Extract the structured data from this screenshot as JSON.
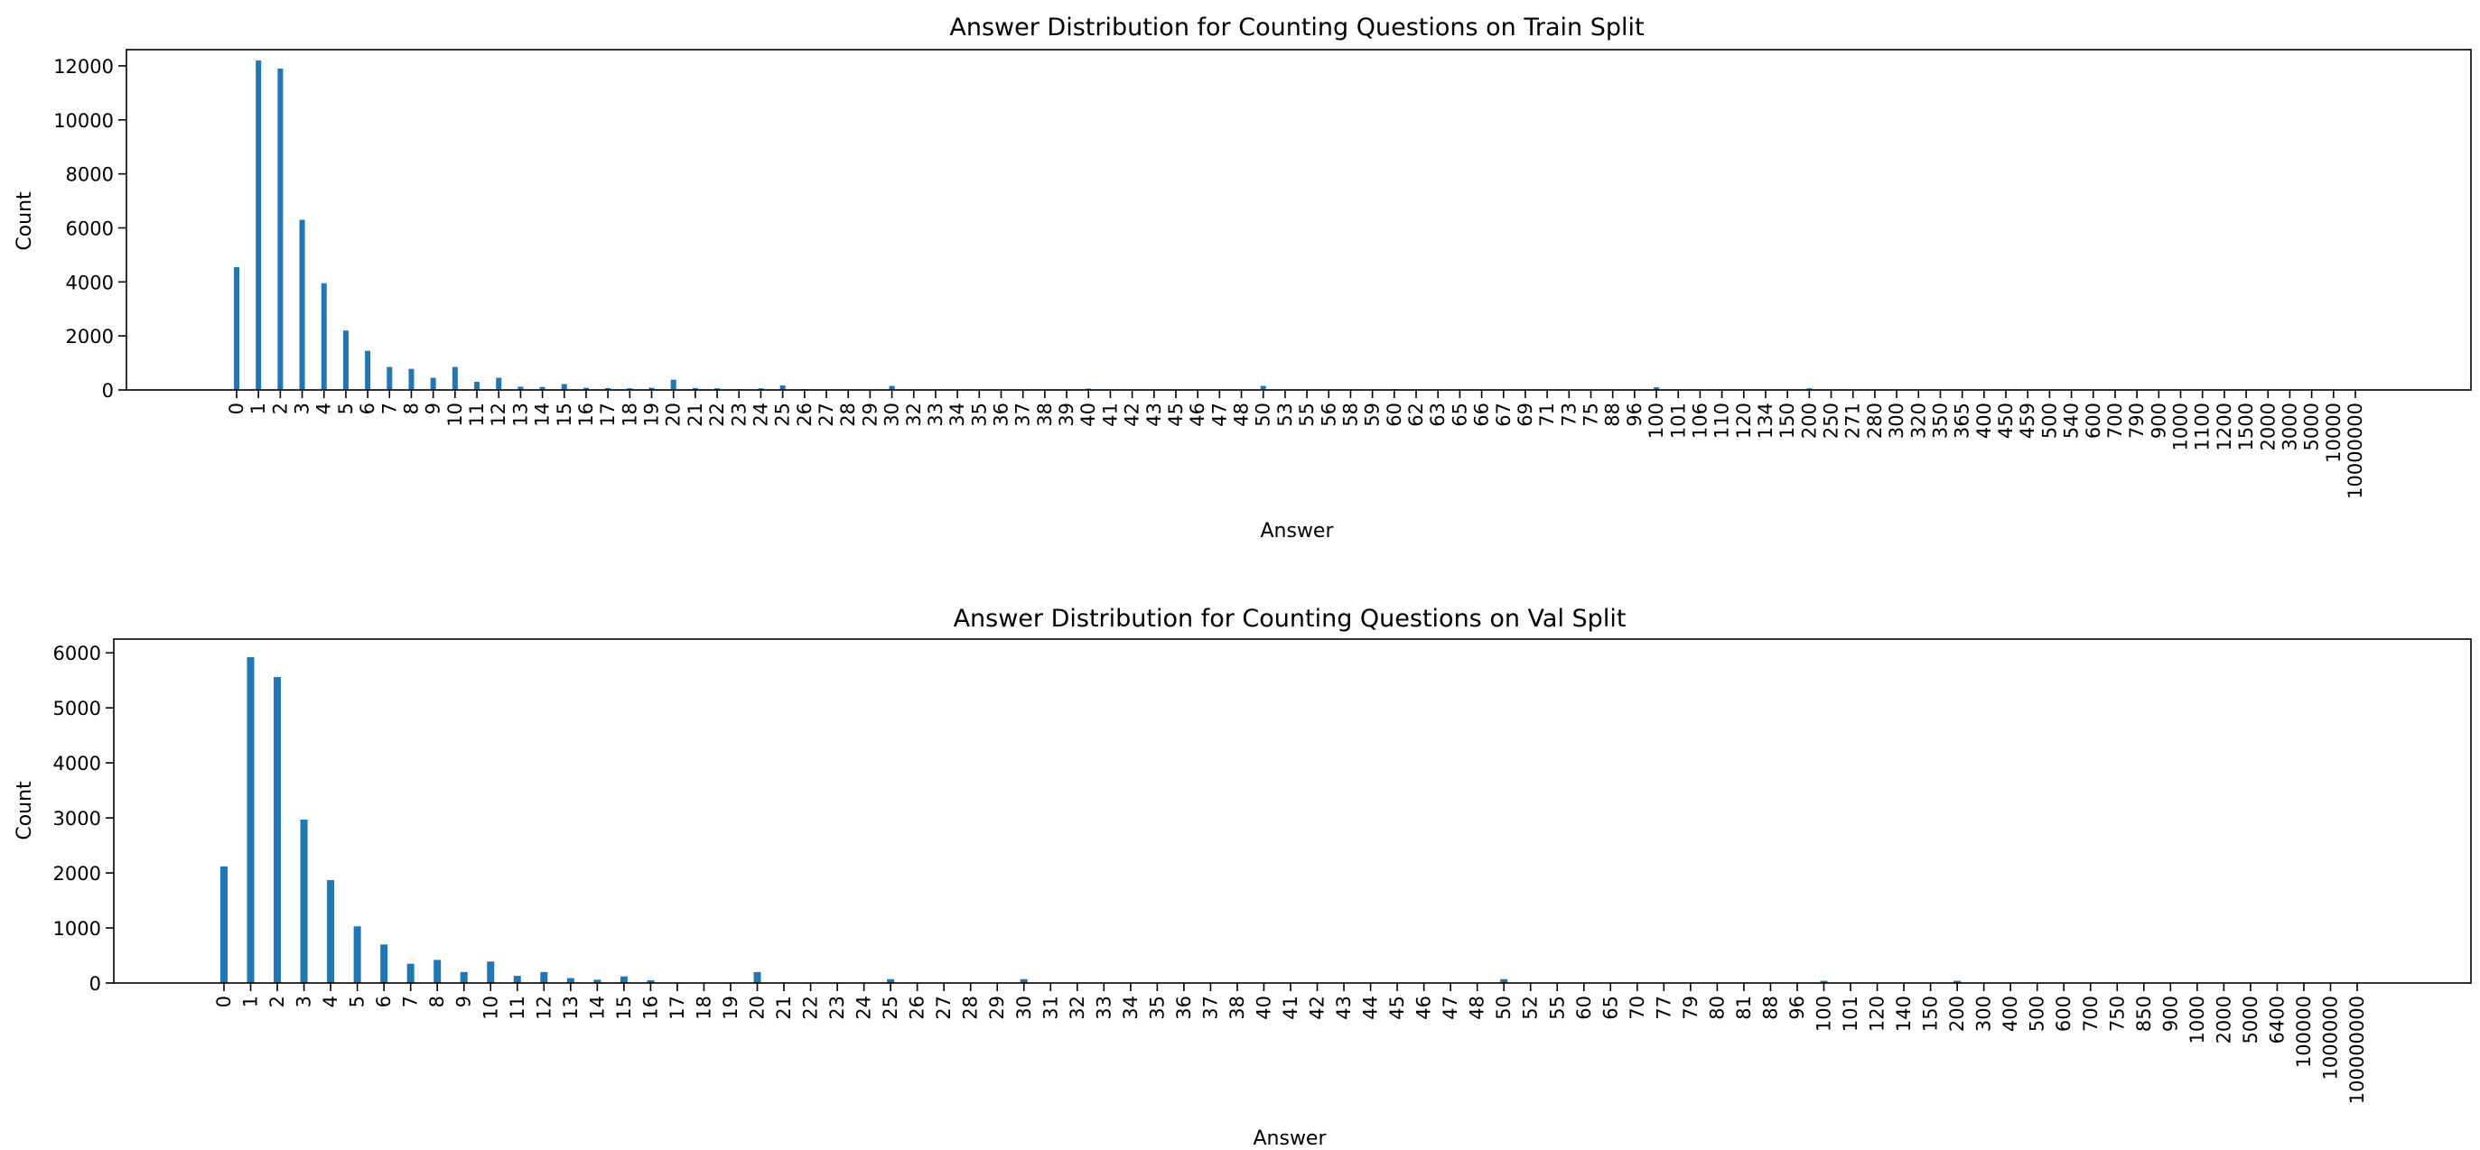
{
  "chart_data": [
    {
      "type": "bar",
      "title": "Answer Distribution for Counting Questions on Train Split",
      "xlabel": "Answer",
      "ylabel": "Count",
      "ylim": [
        0,
        12600
      ],
      "yticks": [
        0,
        2000,
        4000,
        6000,
        8000,
        10000,
        12000
      ],
      "grid": false,
      "categories": [
        "0",
        "1",
        "2",
        "3",
        "4",
        "5",
        "6",
        "7",
        "8",
        "9",
        "10",
        "11",
        "12",
        "13",
        "14",
        "15",
        "16",
        "17",
        "18",
        "19",
        "20",
        "21",
        "22",
        "23",
        "24",
        "25",
        "26",
        "27",
        "28",
        "29",
        "30",
        "32",
        "33",
        "34",
        "35",
        "36",
        "37",
        "38",
        "39",
        "40",
        "41",
        "42",
        "43",
        "45",
        "46",
        "47",
        "48",
        "50",
        "53",
        "55",
        "56",
        "58",
        "59",
        "60",
        "62",
        "63",
        "65",
        "66",
        "67",
        "69",
        "71",
        "73",
        "75",
        "88",
        "96",
        "100",
        "101",
        "106",
        "110",
        "120",
        "134",
        "150",
        "200",
        "250",
        "271",
        "280",
        "300",
        "320",
        "350",
        "365",
        "400",
        "450",
        "459",
        "500",
        "540",
        "600",
        "700",
        "790",
        "900",
        "1000",
        "1100",
        "1200",
        "1500",
        "2000",
        "3000",
        "5000",
        "10000",
        "10000000"
      ],
      "values": [
        4550,
        12200,
        11900,
        6300,
        3950,
        2200,
        1450,
        850,
        780,
        450,
        850,
        300,
        450,
        120,
        110,
        220,
        80,
        70,
        60,
        80,
        380,
        70,
        60,
        30,
        60,
        170,
        30,
        20,
        15,
        15,
        150,
        15,
        10,
        10,
        10,
        10,
        8,
        8,
        8,
        50,
        8,
        8,
        8,
        10,
        8,
        8,
        8,
        150,
        8,
        8,
        5,
        5,
        5,
        30,
        5,
        5,
        5,
        5,
        5,
        5,
        5,
        5,
        5,
        5,
        5,
        100,
        5,
        5,
        5,
        5,
        5,
        5,
        60,
        10,
        5,
        5,
        5,
        5,
        5,
        5,
        5,
        5,
        5,
        5,
        5,
        5,
        5,
        5,
        5,
        5,
        5,
        5,
        5,
        5,
        5,
        5,
        5,
        5
      ]
    },
    {
      "type": "bar",
      "title": "Answer Distribution for Counting Questions on Val Split",
      "xlabel": "Answer",
      "ylabel": "Count",
      "ylim": [
        0,
        6250
      ],
      "yticks": [
        0,
        1000,
        2000,
        3000,
        4000,
        5000,
        6000
      ],
      "grid": false,
      "categories": [
        "0",
        "1",
        "2",
        "3",
        "4",
        "5",
        "6",
        "7",
        "8",
        "9",
        "10",
        "11",
        "12",
        "13",
        "14",
        "15",
        "16",
        "17",
        "18",
        "19",
        "20",
        "21",
        "22",
        "23",
        "24",
        "25",
        "26",
        "27",
        "28",
        "29",
        "30",
        "31",
        "32",
        "33",
        "34",
        "35",
        "36",
        "37",
        "38",
        "40",
        "41",
        "42",
        "43",
        "44",
        "45",
        "46",
        "47",
        "48",
        "50",
        "52",
        "55",
        "60",
        "65",
        "70",
        "77",
        "79",
        "80",
        "81",
        "88",
        "96",
        "100",
        "101",
        "120",
        "140",
        "150",
        "200",
        "300",
        "400",
        "500",
        "600",
        "700",
        "750",
        "850",
        "900",
        "1000",
        "2000",
        "5000",
        "6400",
        "100000",
        "1000000",
        "100000000"
      ],
      "values": [
        2120,
        5920,
        5560,
        2970,
        1870,
        1030,
        700,
        350,
        420,
        200,
        390,
        130,
        200,
        90,
        60,
        120,
        50,
        10,
        10,
        10,
        200,
        10,
        10,
        10,
        10,
        70,
        10,
        5,
        5,
        5,
        70,
        5,
        5,
        5,
        5,
        5,
        5,
        5,
        5,
        5,
        5,
        5,
        5,
        5,
        5,
        5,
        5,
        5,
        70,
        5,
        5,
        5,
        5,
        5,
        5,
        5,
        5,
        5,
        5,
        5,
        40,
        5,
        5,
        5,
        5,
        40,
        5,
        5,
        5,
        5,
        5,
        5,
        5,
        5,
        5,
        5,
        5,
        5,
        5,
        5,
        5
      ]
    }
  ]
}
